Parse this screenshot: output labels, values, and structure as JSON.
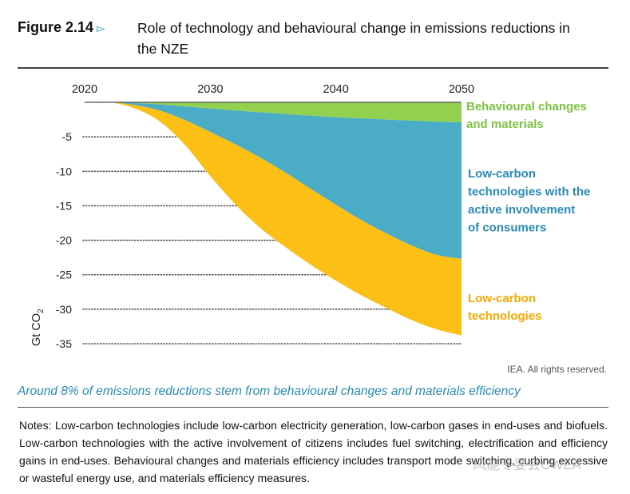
{
  "figure": {
    "label": "Figure 2.14",
    "title": "Role of technology and behavioural change in emissions reductions in the NZE"
  },
  "credit": "IEA. All rights reserved.",
  "caption": "Around 8% of emissions reductions stem from behavioural changes and materials efficiency",
  "notes": "Notes: Low-carbon technologies include low-carbon electricity generation, low-carbon gases in end-uses and biofuels. Low-carbon technologies with the active involvement of citizens includes fuel switching, electrification and efficiency gains in end-uses. Behavioural changes and materials efficiency includes transport mode switching, curbing excessive or wasteful energy use, and materials efficiency measures.",
  "watermark": "风能专委会CWEA",
  "colors": {
    "behavioural": "#92d050",
    "consumers": "#4bacc6",
    "technologies": "#fbbf16",
    "label_green": "#7cc242",
    "label_blue": "#2a8ab6",
    "label_orange": "#f5a800"
  },
  "chart_data": {
    "type": "area",
    "stacked": true,
    "title": "Role of technology and behavioural change in emissions reductions in the NZE",
    "xlabel": "",
    "ylabel": "Gt CO2",
    "x_ticks": [
      "2020",
      "2030",
      "2040",
      "2050"
    ],
    "y_ticks": [
      "-5",
      "-10",
      "-15",
      "-20",
      "-25",
      "-30",
      "-35"
    ],
    "xlim": [
      2020,
      2050
    ],
    "ylim": [
      -35,
      0
    ],
    "x": [
      2020,
      2022,
      2024,
      2026,
      2028,
      2030,
      2032,
      2034,
      2036,
      2038,
      2040,
      2042,
      2044,
      2046,
      2048,
      2050
    ],
    "series": [
      {
        "name": "Behavioural changes and materials",
        "values": [
          0,
          0,
          -0.1,
          -0.3,
          -0.6,
          -0.9,
          -1.2,
          -1.45,
          -1.7,
          -1.95,
          -2.15,
          -2.35,
          -2.5,
          -2.65,
          -2.8,
          -2.9
        ]
      },
      {
        "name": "Low-carbon technologies with the active involvement of consumers",
        "values": [
          0,
          0,
          -0.3,
          -0.9,
          -2.0,
          -3.4,
          -4.9,
          -6.6,
          -8.5,
          -10.6,
          -12.7,
          -14.7,
          -16.5,
          -18.1,
          -19.3,
          -19.8
        ]
      },
      {
        "name": "Low-carbon technologies",
        "values": [
          0,
          0,
          -0.5,
          -1.6,
          -3.6,
          -6.4,
          -8.7,
          -10.2,
          -10.8,
          -11.0,
          -11.0,
          -10.9,
          -10.8,
          -10.8,
          -10.8,
          -11.1
        ]
      }
    ],
    "series_labels": {
      "behavioural": [
        "Behavioural changes",
        "and materials"
      ],
      "consumers": [
        "Low-carbon",
        "technologies with the",
        "active involvement",
        "of consumers"
      ],
      "technologies": [
        "Low-carbon",
        "technologies"
      ]
    },
    "ylabel_main": "Gt CO",
    "ylabel_sub": "2"
  }
}
